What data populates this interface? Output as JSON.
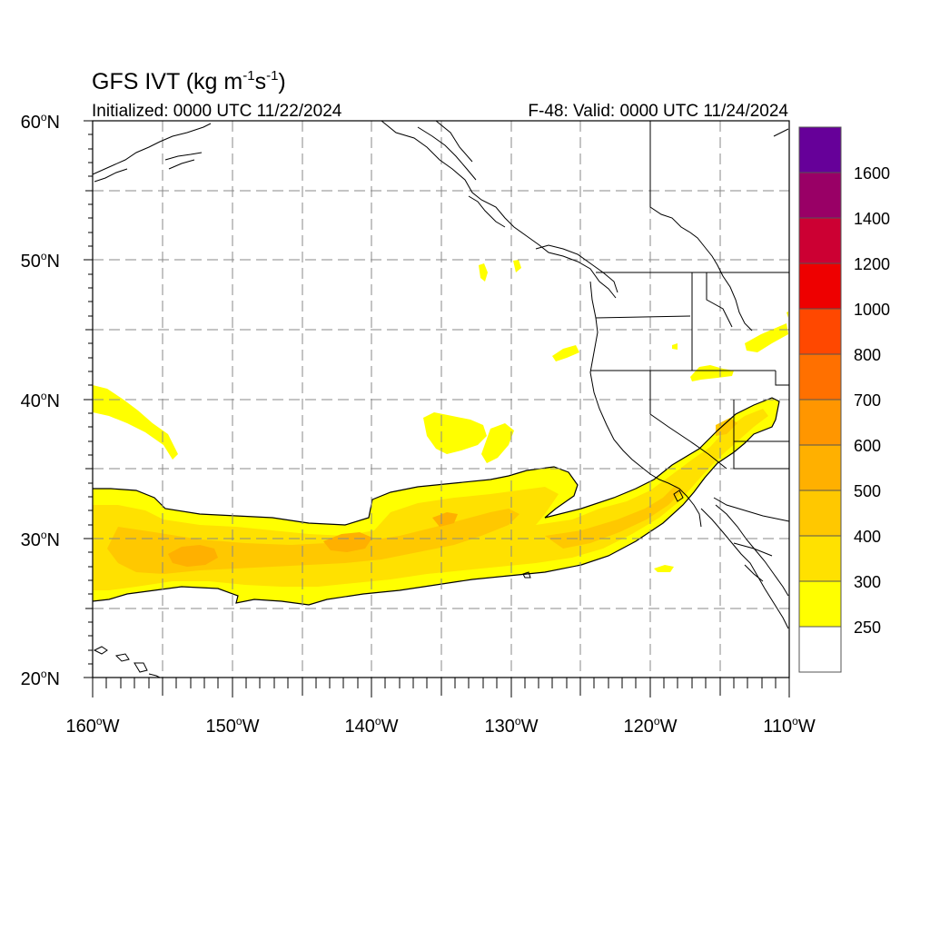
{
  "header": {
    "title_prefix": "GFS IVT (kg m",
    "title_exp1": "-1",
    "title_mid": "s",
    "title_exp2": "-1",
    "title_suffix": ")",
    "initialized": "Initialized: 0000 UTC 11/22/2024",
    "valid": "F-48: Valid: 0000 UTC 11/24/2024"
  },
  "axes": {
    "lat_labels": [
      {
        "deg": "60",
        "suffix": "N"
      },
      {
        "deg": "50",
        "suffix": "N"
      },
      {
        "deg": "40",
        "suffix": "N"
      },
      {
        "deg": "30",
        "suffix": "N"
      },
      {
        "deg": "20",
        "suffix": "N"
      }
    ],
    "lon_labels": [
      {
        "deg": "160",
        "suffix": "W"
      },
      {
        "deg": "150",
        "suffix": "W"
      },
      {
        "deg": "140",
        "suffix": "W"
      },
      {
        "deg": "130",
        "suffix": "W"
      },
      {
        "deg": "120",
        "suffix": "W"
      },
      {
        "deg": "110",
        "suffix": "W"
      }
    ],
    "lat_range": [
      20,
      60
    ],
    "lon_range": [
      -160,
      -110
    ],
    "gridlines": "dashed, every 5 degrees"
  },
  "colorbar": {
    "labels": [
      "250",
      "300",
      "400",
      "500",
      "600",
      "700",
      "800",
      "1000",
      "1200",
      "1400",
      "1600"
    ],
    "colors": [
      "#ffffff",
      "#ffff00",
      "#ffe100",
      "#ffc800",
      "#ffb000",
      "#ff9600",
      "#ff7000",
      "#ff4800",
      "#ee0000",
      "#cc0033",
      "#990066",
      "#660099"
    ]
  },
  "colors": {
    "ivt_250": "#ffff00",
    "ivt_300": "#ffe100",
    "ivt_400": "#ffc800",
    "ivt_500": "#ffb000",
    "map_lines": "#000000",
    "grid_lines": "#888888"
  }
}
